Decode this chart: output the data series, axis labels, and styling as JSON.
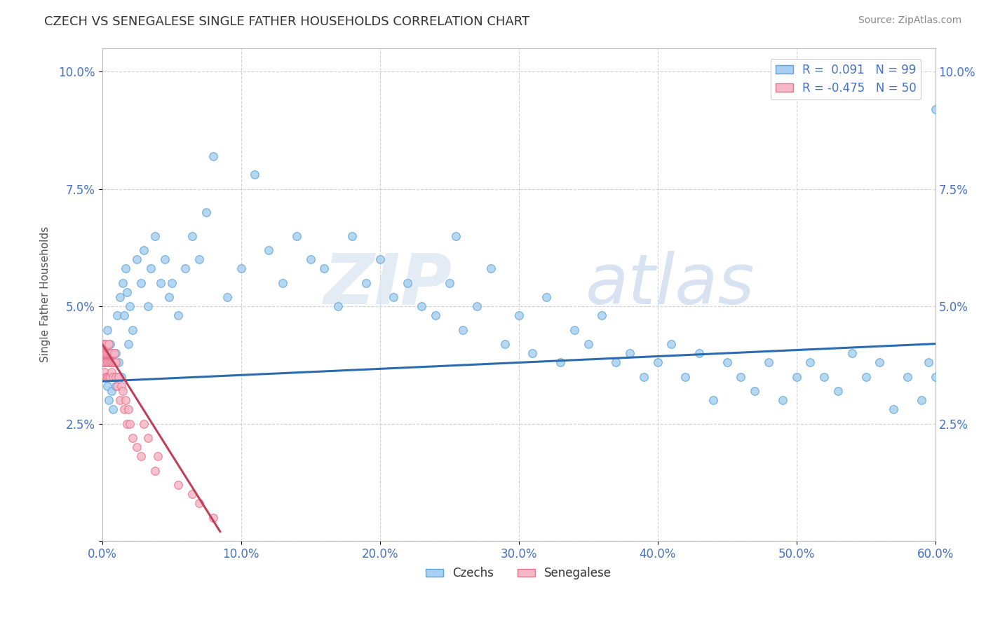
{
  "title": "CZECH VS SENEGALESE SINGLE FATHER HOUSEHOLDS CORRELATION CHART",
  "source_text": "Source: ZipAtlas.com",
  "ylabel": "Single Father Households",
  "xlim": [
    0.0,
    0.6
  ],
  "ylim": [
    0.0,
    0.105
  ],
  "xticks": [
    0.0,
    0.1,
    0.2,
    0.3,
    0.4,
    0.5,
    0.6
  ],
  "xticklabels": [
    "0.0%",
    "10.0%",
    "20.0%",
    "30.0%",
    "40.0%",
    "50.0%",
    "60.0%"
  ],
  "yticks": [
    0.0,
    0.025,
    0.05,
    0.075,
    0.1
  ],
  "yticklabels": [
    "",
    "2.5%",
    "5.0%",
    "7.5%",
    "10.0%"
  ],
  "czech_color": "#a8d0f0",
  "senegalese_color": "#f5b8c8",
  "trend_czech_color": "#2b6cb0",
  "trend_senegalese_color": "#c0405a",
  "legend_R_czech": "R =  0.091",
  "legend_N_czech": "N = 99",
  "legend_R_senegalese": "R = -0.475",
  "legend_N_senegalese": "N = 50",
  "background_color": "#ffffff",
  "grid_color": "#cccccc",
  "czech_x": [
    0.001,
    0.002,
    0.003,
    0.003,
    0.004,
    0.004,
    0.005,
    0.005,
    0.006,
    0.006,
    0.007,
    0.007,
    0.008,
    0.008,
    0.009,
    0.01,
    0.01,
    0.011,
    0.012,
    0.013,
    0.014,
    0.015,
    0.016,
    0.017,
    0.018,
    0.019,
    0.02,
    0.022,
    0.025,
    0.028,
    0.03,
    0.033,
    0.035,
    0.038,
    0.042,
    0.045,
    0.048,
    0.05,
    0.055,
    0.06,
    0.065,
    0.07,
    0.075,
    0.08,
    0.09,
    0.1,
    0.11,
    0.12,
    0.13,
    0.14,
    0.15,
    0.16,
    0.17,
    0.18,
    0.19,
    0.2,
    0.21,
    0.22,
    0.23,
    0.24,
    0.25,
    0.255,
    0.26,
    0.27,
    0.28,
    0.29,
    0.3,
    0.31,
    0.32,
    0.33,
    0.34,
    0.35,
    0.36,
    0.37,
    0.38,
    0.39,
    0.4,
    0.41,
    0.42,
    0.43,
    0.44,
    0.45,
    0.46,
    0.47,
    0.48,
    0.49,
    0.5,
    0.51,
    0.52,
    0.53,
    0.54,
    0.55,
    0.56,
    0.57,
    0.58,
    0.59,
    0.595,
    0.6,
    0.6
  ],
  "czech_y": [
    0.038,
    0.042,
    0.035,
    0.04,
    0.033,
    0.045,
    0.038,
    0.03,
    0.042,
    0.035,
    0.038,
    0.032,
    0.04,
    0.028,
    0.035,
    0.04,
    0.033,
    0.048,
    0.038,
    0.052,
    0.035,
    0.055,
    0.048,
    0.058,
    0.053,
    0.042,
    0.05,
    0.045,
    0.06,
    0.055,
    0.062,
    0.05,
    0.058,
    0.065,
    0.055,
    0.06,
    0.052,
    0.055,
    0.048,
    0.058,
    0.065,
    0.06,
    0.07,
    0.082,
    0.052,
    0.058,
    0.078,
    0.062,
    0.055,
    0.065,
    0.06,
    0.058,
    0.05,
    0.065,
    0.055,
    0.06,
    0.052,
    0.055,
    0.05,
    0.048,
    0.055,
    0.065,
    0.045,
    0.05,
    0.058,
    0.042,
    0.048,
    0.04,
    0.052,
    0.038,
    0.045,
    0.042,
    0.048,
    0.038,
    0.04,
    0.035,
    0.038,
    0.042,
    0.035,
    0.04,
    0.03,
    0.038,
    0.035,
    0.032,
    0.038,
    0.03,
    0.035,
    0.038,
    0.035,
    0.032,
    0.04,
    0.035,
    0.038,
    0.028,
    0.035,
    0.03,
    0.038,
    0.035,
    0.092
  ],
  "senegalese_x": [
    0.001,
    0.001,
    0.001,
    0.002,
    0.002,
    0.002,
    0.003,
    0.003,
    0.003,
    0.003,
    0.004,
    0.004,
    0.004,
    0.005,
    0.005,
    0.005,
    0.005,
    0.006,
    0.006,
    0.006,
    0.007,
    0.007,
    0.007,
    0.008,
    0.008,
    0.009,
    0.009,
    0.01,
    0.01,
    0.011,
    0.012,
    0.013,
    0.014,
    0.015,
    0.016,
    0.017,
    0.018,
    0.019,
    0.02,
    0.022,
    0.025,
    0.028,
    0.03,
    0.033,
    0.038,
    0.04,
    0.055,
    0.065,
    0.07,
    0.08
  ],
  "senegalese_y": [
    0.04,
    0.038,
    0.042,
    0.04,
    0.038,
    0.036,
    0.04,
    0.038,
    0.035,
    0.042,
    0.038,
    0.04,
    0.035,
    0.038,
    0.04,
    0.035,
    0.042,
    0.038,
    0.04,
    0.035,
    0.038,
    0.036,
    0.04,
    0.038,
    0.035,
    0.038,
    0.04,
    0.035,
    0.038,
    0.033,
    0.035,
    0.03,
    0.033,
    0.032,
    0.028,
    0.03,
    0.025,
    0.028,
    0.025,
    0.022,
    0.02,
    0.018,
    0.025,
    0.022,
    0.015,
    0.018,
    0.012,
    0.01,
    0.008,
    0.005
  ],
  "czech_trend_x": [
    0.0,
    0.6
  ],
  "czech_trend_y": [
    0.034,
    0.042
  ],
  "senegalese_trend_x": [
    0.0,
    0.085
  ],
  "senegalese_trend_y": [
    0.042,
    0.002
  ]
}
